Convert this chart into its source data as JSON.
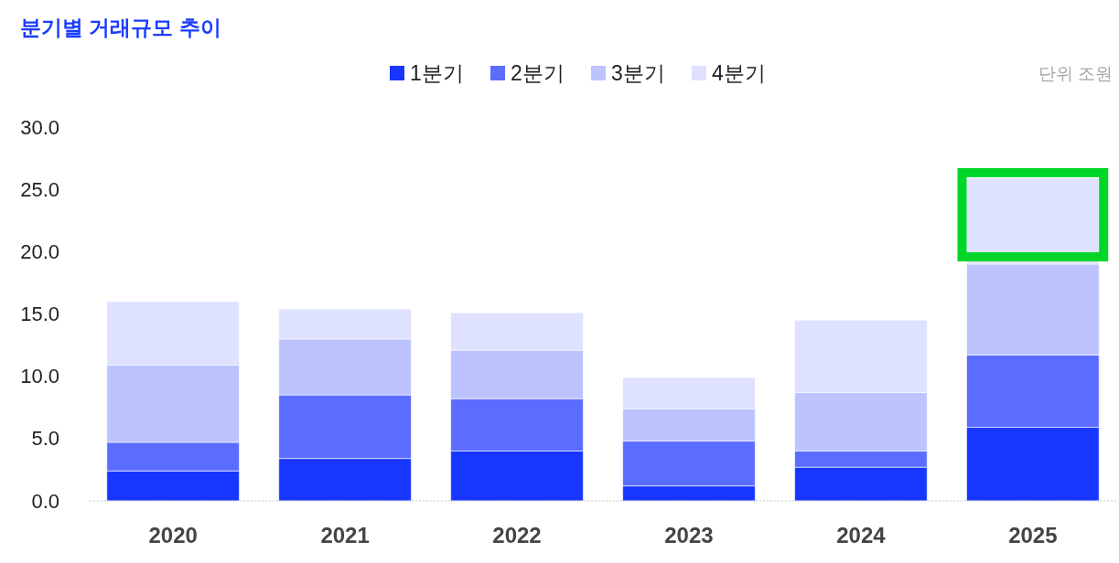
{
  "chart_data": {
    "type": "bar",
    "title": "분기별 거래규모 추이",
    "categories": [
      "2020",
      "2021",
      "2022",
      "2023",
      "2024",
      "2025"
    ],
    "series": [
      {
        "name": "1분기",
        "color": "#1736ff",
        "values": [
          2.4,
          3.4,
          4.0,
          1.2,
          2.7,
          5.9
        ]
      },
      {
        "name": "2분기",
        "color": "#5a6dff",
        "values": [
          2.3,
          5.1,
          4.2,
          3.6,
          1.3,
          5.8
        ]
      },
      {
        "name": "3분기",
        "color": "#bcc3ff",
        "values": [
          6.2,
          4.5,
          3.9,
          2.6,
          4.7,
          7.3
        ]
      },
      {
        "name": "4분기",
        "color": "#dee2ff",
        "values": [
          5.1,
          2.4,
          3.0,
          2.5,
          5.8,
          6.9
        ]
      }
    ],
    "stacked": true,
    "ylim": [
      0,
      30
    ],
    "yticks": [
      {
        "value": 0,
        "label": "0.0"
      },
      {
        "value": 5,
        "label": "5.0"
      },
      {
        "value": 10,
        "label": "10.0"
      },
      {
        "value": 15,
        "label": "15.0"
      },
      {
        "value": 20,
        "label": "20.0"
      },
      {
        "value": 25,
        "label": "25.0"
      },
      {
        "value": 30,
        "label": "30.0"
      }
    ],
    "legend": "top",
    "annotations": [
      "단위 조원"
    ]
  }
}
